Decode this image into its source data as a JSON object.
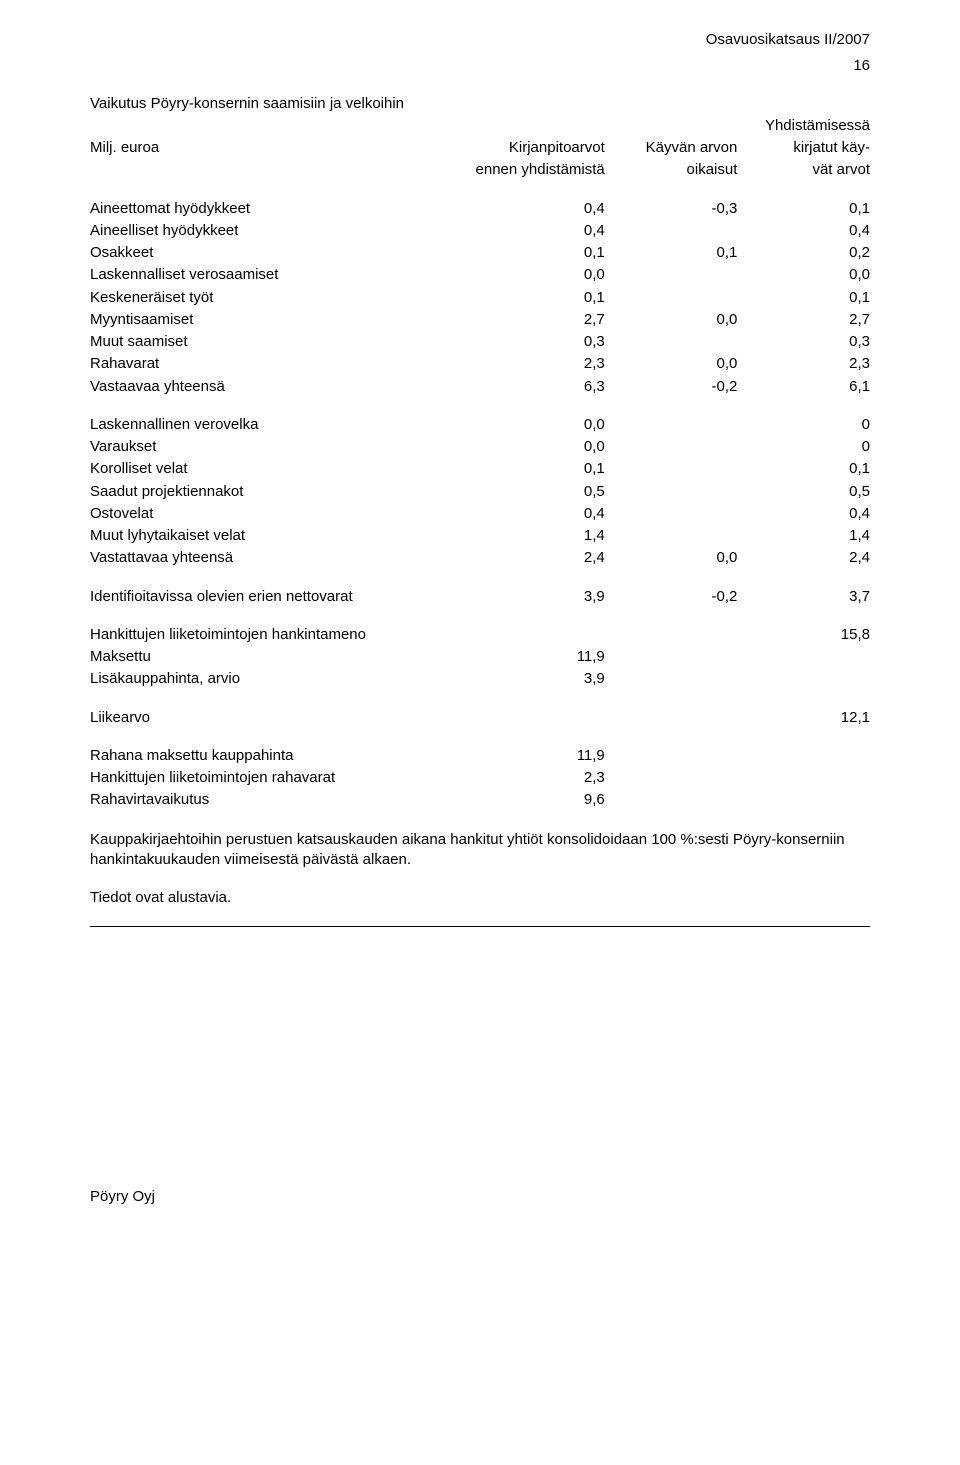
{
  "header": {
    "doc_title": "Osavuosikatsaus II/2007",
    "page_number": "16"
  },
  "title_block": {
    "main_title": "Vaikutus Pöyry-konsernin saamisiin ja velkoihin",
    "unit_label": "Milj. euroa",
    "col_headers": {
      "col_a_line1": "Kirjanpitoarvot",
      "col_a_line2": "ennen yhdistämistä",
      "col_b_line1": "Käyvän arvon",
      "col_b_line2": "oikaisut",
      "col_c_line0": "Yhdistämisessä",
      "col_c_line1": "kirjatut käy-",
      "col_c_line2": "vät arvot"
    }
  },
  "rows": {
    "r1": {
      "label": "Aineettomat hyödykkeet",
      "a": "0,4",
      "b": "-0,3",
      "c": "0,1"
    },
    "r2": {
      "label": "Aineelliset hyödykkeet",
      "a": "0,4",
      "b": "",
      "c": "0,4"
    },
    "r3": {
      "label": "Osakkeet",
      "a": "0,1",
      "b": "0,1",
      "c": "0,2"
    },
    "r4": {
      "label": "Laskennalliset verosaamiset",
      "a": "0,0",
      "b": "",
      "c": "0,0"
    },
    "r5": {
      "label": "Keskeneräiset työt",
      "a": "0,1",
      "b": "",
      "c": "0,1"
    },
    "r6": {
      "label": "Myyntisaamiset",
      "a": "2,7",
      "b": "0,0",
      "c": "2,7"
    },
    "r7": {
      "label": "Muut saamiset",
      "a": "0,3",
      "b": "",
      "c": "0,3"
    },
    "r8": {
      "label": "Rahavarat",
      "a": "2,3",
      "b": "0,0",
      "c": "2,3"
    },
    "r9": {
      "label": "Vastaavaa yhteensä",
      "a": "6,3",
      "b": "-0,2",
      "c": "6,1"
    },
    "r10": {
      "label": "Laskennallinen verovelka",
      "a": "0,0",
      "b": "",
      "c": "0"
    },
    "r11": {
      "label": "Varaukset",
      "a": "0,0",
      "b": "",
      "c": "0"
    },
    "r12": {
      "label": "Korolliset velat",
      "a": "0,1",
      "b": "",
      "c": "0,1"
    },
    "r13": {
      "label": "Saadut projektiennakot",
      "a": "0,5",
      "b": "",
      "c": "0,5"
    },
    "r14": {
      "label": "Ostovelat",
      "a": "0,4",
      "b": "",
      "c": "0,4"
    },
    "r15": {
      "label": "Muut lyhytaikaiset velat",
      "a": "1,4",
      "b": "",
      "c": "1,4"
    },
    "r16": {
      "label": "Vastattavaa yhteensä",
      "a": "2,4",
      "b": "0,0",
      "c": "2,4"
    },
    "r17": {
      "label": "Identifioitavissa olevien erien nettovarat",
      "a": "3,9",
      "b": "-0,2",
      "c": "3,7"
    },
    "r18": {
      "label": "Hankittujen liiketoimintojen hankintameno",
      "a": "",
      "b": "",
      "c": "15,8"
    },
    "r19": {
      "label": "Maksettu",
      "a": "11,9",
      "b": "",
      "c": ""
    },
    "r20": {
      "label": "Lisäkauppahinta, arvio",
      "a": "3,9",
      "b": "",
      "c": ""
    },
    "r21": {
      "label": "Liikearvo",
      "a": "",
      "b": "",
      "c": "12,1"
    },
    "r22": {
      "label": "Rahana maksettu kauppahinta",
      "a": "11,9",
      "b": "",
      "c": ""
    },
    "r23": {
      "label": "Hankittujen liiketoimintojen rahavarat",
      "a": "2,3",
      "b": "",
      "c": ""
    },
    "r24": {
      "label": "Rahavirtavaikutus",
      "a": "9,6",
      "b": "",
      "c": ""
    }
  },
  "notes": {
    "p1": "Kauppakirjaehtoihin perustuen katsauskauden aikana hankitut yhtiöt konsolidoidaan 100 %:sesti Pöyry-konserniin hankintakuukauden viimeisestä päivästä alkaen.",
    "p2": "Tiedot ovat alustavia."
  },
  "footer": {
    "company": "Pöyry Oyj"
  }
}
